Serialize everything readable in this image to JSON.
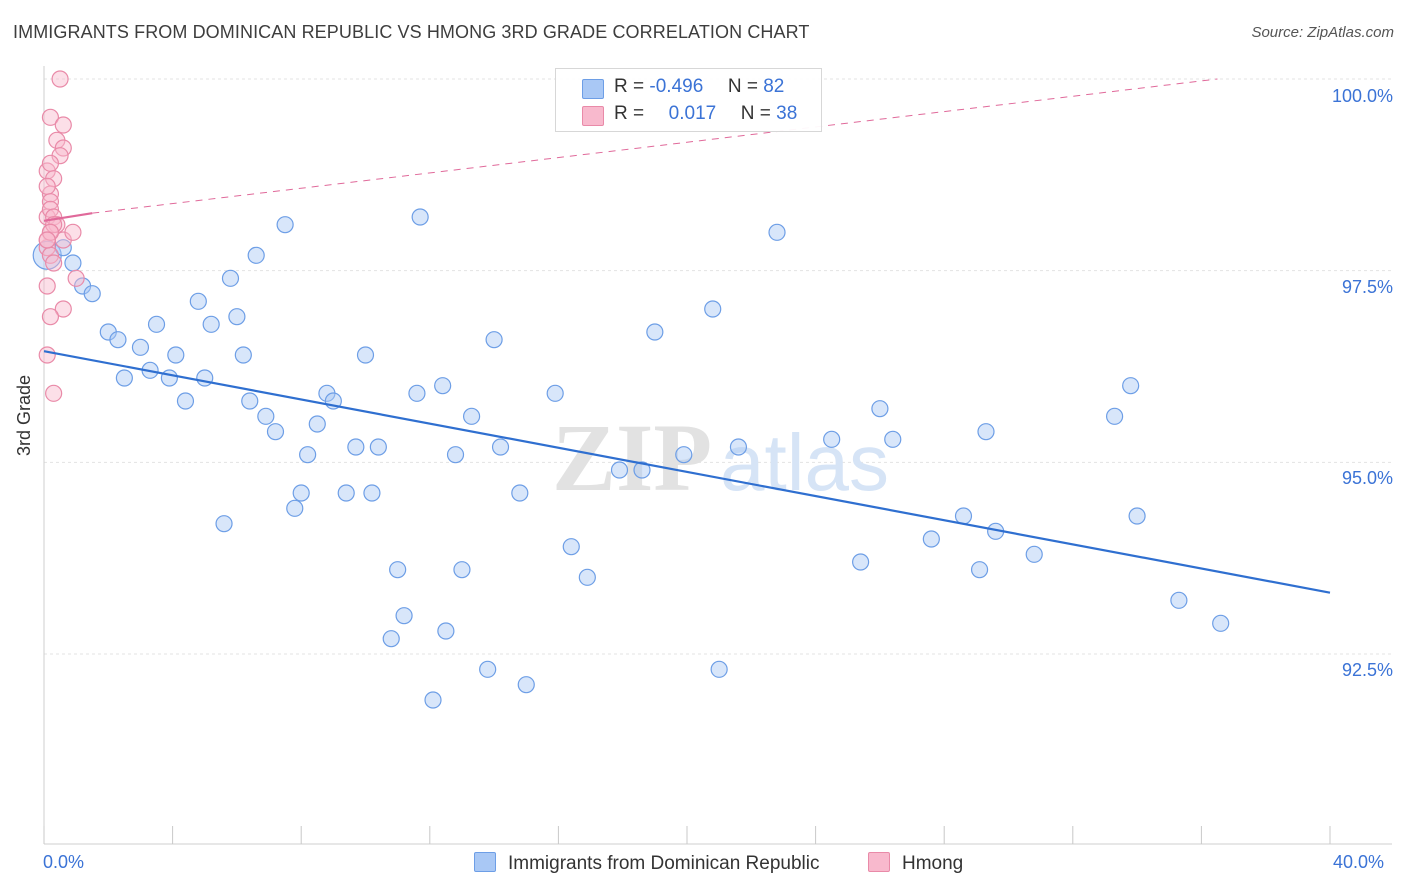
{
  "title": "IMMIGRANTS FROM DOMINICAN REPUBLIC VS HMONG 3RD GRADE CORRELATION CHART",
  "source": "Source: ZipAtlas.com",
  "watermark": {
    "zip": "ZIP",
    "atlas": "atlas"
  },
  "legend": {
    "rows": [
      {
        "r_label": "R =",
        "r_value": "-0.496",
        "n_label": "N =",
        "n_value": "82",
        "color": "#a9c8f5",
        "border": "#6d9ee6"
      },
      {
        "r_label": "R =",
        "r_value": "0.017",
        "n_label": "N =",
        "n_value": "38",
        "color": "#f8b9cd",
        "border": "#e98aa8"
      }
    ]
  },
  "bottom_legend": [
    {
      "label": "Immigrants from Dominican Republic",
      "color": "#a9c8f5",
      "border": "#6d9ee6"
    },
    {
      "label": "Hmong",
      "color": "#f8b9cd",
      "border": "#e98aa8"
    }
  ],
  "colors": {
    "blue_line": "#2f6fd0",
    "pink_line": "#e0699a",
    "blue_dot_fill": "rgba(169,200,245,0.45)",
    "blue_dot_stroke": "#6d9ee6",
    "pink_dot_fill": "rgba(248,185,205,0.45)",
    "pink_dot_stroke": "#e98aa8",
    "tick_label": "#3b73d6"
  },
  "chart_data": {
    "type": "scatter",
    "title": "IMMIGRANTS FROM DOMINICAN REPUBLIC VS HMONG 3RD GRADE CORRELATION CHART",
    "xlabel": "",
    "ylabel": "3rd Grade",
    "xlim": [
      0,
      40
    ],
    "ylim": [
      90.2,
      100.2
    ],
    "x_tick_labels": [
      "0.0%",
      "40.0%"
    ],
    "y_ticks": [
      92.5,
      95.0,
      97.5,
      100.0
    ],
    "y_tick_labels": [
      "92.5%",
      "95.0%",
      "97.5%",
      "100.0%"
    ],
    "grid": true,
    "legend_position": "top-center",
    "series": [
      {
        "name": "Immigrants from Dominican Republic",
        "trend": {
          "x": [
            0,
            40
          ],
          "y": [
            96.45,
            93.3
          ]
        },
        "points": [
          [
            0.1,
            97.7
          ],
          [
            0.6,
            97.8
          ],
          [
            0.9,
            97.6
          ],
          [
            1.2,
            97.3
          ],
          [
            1.5,
            97.2
          ],
          [
            2.0,
            96.7
          ],
          [
            2.3,
            96.6
          ],
          [
            2.5,
            96.1
          ],
          [
            3.0,
            96.5
          ],
          [
            3.5,
            96.8
          ],
          [
            3.3,
            96.2
          ],
          [
            3.9,
            96.1
          ],
          [
            4.1,
            96.4
          ],
          [
            4.4,
            95.8
          ],
          [
            4.8,
            97.1
          ],
          [
            5.0,
            96.1
          ],
          [
            5.2,
            96.8
          ],
          [
            5.6,
            94.2
          ],
          [
            5.8,
            97.4
          ],
          [
            6.0,
            96.9
          ],
          [
            6.2,
            96.4
          ],
          [
            6.4,
            95.8
          ],
          [
            6.6,
            97.7
          ],
          [
            6.9,
            95.6
          ],
          [
            7.2,
            95.4
          ],
          [
            7.5,
            98.1
          ],
          [
            7.8,
            94.4
          ],
          [
            8.0,
            94.6
          ],
          [
            8.2,
            95.1
          ],
          [
            8.5,
            95.5
          ],
          [
            8.8,
            95.9
          ],
          [
            9.0,
            95.8
          ],
          [
            9.4,
            94.6
          ],
          [
            9.7,
            95.2
          ],
          [
            10.0,
            96.4
          ],
          [
            10.2,
            94.6
          ],
          [
            10.4,
            95.2
          ],
          [
            10.8,
            92.7
          ],
          [
            11.0,
            93.6
          ],
          [
            11.2,
            93.0
          ],
          [
            11.6,
            95.9
          ],
          [
            11.7,
            98.2
          ],
          [
            12.1,
            91.9
          ],
          [
            12.4,
            96.0
          ],
          [
            12.5,
            92.8
          ],
          [
            12.8,
            95.1
          ],
          [
            13.0,
            93.6
          ],
          [
            13.3,
            95.6
          ],
          [
            13.8,
            92.3
          ],
          [
            14.0,
            96.6
          ],
          [
            14.2,
            95.2
          ],
          [
            14.8,
            94.6
          ],
          [
            15.0,
            92.1
          ],
          [
            15.9,
            95.9
          ],
          [
            16.4,
            93.9
          ],
          [
            16.9,
            93.5
          ],
          [
            17.9,
            94.9
          ],
          [
            18.6,
            94.9
          ],
          [
            19.0,
            96.7
          ],
          [
            19.9,
            95.1
          ],
          [
            20.8,
            97.0
          ],
          [
            21.0,
            92.3
          ],
          [
            21.6,
            95.2
          ],
          [
            22.8,
            98.0
          ],
          [
            24.5,
            95.3
          ],
          [
            25.4,
            93.7
          ],
          [
            26.0,
            95.7
          ],
          [
            26.4,
            95.3
          ],
          [
            27.6,
            94.0
          ],
          [
            28.6,
            94.3
          ],
          [
            29.1,
            93.6
          ],
          [
            29.3,
            95.4
          ],
          [
            29.6,
            94.1
          ],
          [
            30.8,
            93.8
          ],
          [
            33.3,
            95.6
          ],
          [
            33.8,
            96.0
          ],
          [
            34.0,
            94.3
          ],
          [
            35.3,
            93.2
          ],
          [
            36.6,
            92.9
          ]
        ]
      },
      {
        "name": "Hmong",
        "trend": {
          "x": [
            0,
            1.5
          ],
          "y": [
            98.15,
            98.25
          ]
        },
        "trend_extension": {
          "x": [
            1.5,
            36.5
          ],
          "y": [
            98.25,
            100.0
          ]
        },
        "points": [
          [
            0.5,
            100.0
          ],
          [
            0.2,
            99.5
          ],
          [
            0.6,
            99.4
          ],
          [
            0.4,
            99.2
          ],
          [
            0.6,
            99.1
          ],
          [
            0.1,
            98.8
          ],
          [
            0.5,
            99.0
          ],
          [
            0.2,
            98.9
          ],
          [
            0.3,
            98.7
          ],
          [
            0.2,
            98.5
          ],
          [
            0.1,
            98.6
          ],
          [
            0.2,
            98.4
          ],
          [
            0.1,
            98.2
          ],
          [
            0.2,
            98.3
          ],
          [
            0.3,
            98.2
          ],
          [
            0.4,
            98.1
          ],
          [
            0.2,
            98.0
          ],
          [
            0.6,
            97.9
          ],
          [
            0.1,
            97.8
          ],
          [
            0.2,
            97.7
          ],
          [
            0.3,
            97.6
          ],
          [
            0.1,
            97.9
          ],
          [
            0.9,
            98.0
          ],
          [
            1.0,
            97.4
          ],
          [
            0.1,
            97.3
          ],
          [
            0.6,
            97.0
          ],
          [
            0.2,
            96.9
          ],
          [
            0.1,
            96.4
          ],
          [
            0.3,
            95.9
          ],
          [
            0.3,
            98.1
          ],
          [
            0.2,
            98.0
          ],
          [
            0.1,
            97.9
          ]
        ]
      }
    ]
  }
}
